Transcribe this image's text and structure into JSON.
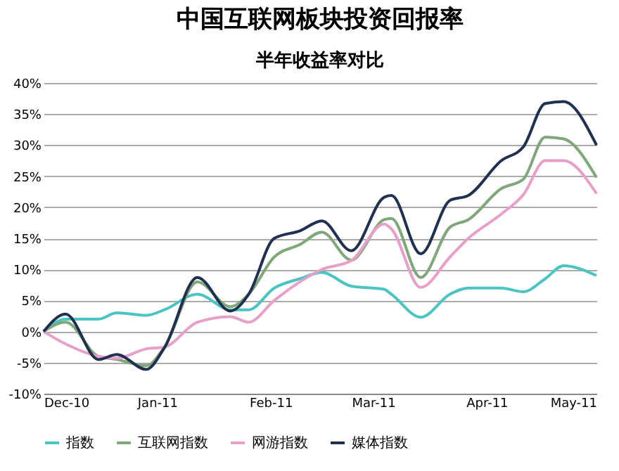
{
  "chart_data": {
    "type": "line",
    "title": "中国互联网板块投资回报率",
    "subtitle": "半年收益率对比",
    "x": [
      "2010-12-01",
      "2010-12-07",
      "2010-12-16",
      "2010-12-21",
      "2010-12-29",
      "2011-01-03",
      "2011-01-12",
      "2011-01-21",
      "2011-01-26",
      "2011-02-02",
      "2011-02-09",
      "2011-02-15",
      "2011-02-23",
      "2011-03-04",
      "2011-03-06",
      "2011-03-14",
      "2011-03-22",
      "2011-03-27",
      "2011-04-05",
      "2011-04-11",
      "2011-04-17",
      "2011-04-22",
      "2011-05-01"
    ],
    "series": [
      {
        "name": "指数",
        "color": "#4bc4c4",
        "values": [
          0,
          2,
          2,
          3,
          2.6,
          3.5,
          6,
          3.5,
          3.5,
          7,
          8.5,
          9.5,
          7.3,
          6.8,
          6,
          2.3,
          6,
          7,
          7,
          6.4,
          8.5,
          10.6,
          9
        ]
      },
      {
        "name": "互联网指数",
        "color": "#7fa779",
        "values": [
          0,
          1.5,
          -4,
          -4.5,
          -5.5,
          -2.5,
          8,
          4,
          6,
          12,
          14,
          16,
          11.5,
          18,
          18.2,
          8.7,
          16.8,
          18,
          23,
          24.5,
          31.3,
          31,
          24.8
        ]
      },
      {
        "name": "网游指数",
        "color": "#e8a0c8",
        "values": [
          0,
          -2,
          -4,
          -4.3,
          -2.8,
          -2.5,
          1.5,
          2.4,
          1.5,
          5,
          8,
          10,
          11.4,
          17.3,
          16.5,
          7.1,
          12,
          15,
          18.9,
          22,
          27.5,
          27.5,
          22.2
        ]
      },
      {
        "name": "媒体指数",
        "color": "#1f3050",
        "values": [
          0,
          2.8,
          -4.5,
          -3.7,
          -6.1,
          -2.6,
          8.7,
          3.3,
          6,
          15,
          16.2,
          17.8,
          13,
          21.6,
          21.9,
          12.5,
          21.1,
          21.9,
          27.5,
          29.7,
          36.7,
          37,
          30
        ]
      }
    ],
    "xlim": [
      "2010-12-01",
      "2011-05-01"
    ],
    "xticks": [
      {
        "value": "2010-12-01",
        "label": "Dec-10"
      },
      {
        "value": "2011-01-01",
        "label": "Jan-11"
      },
      {
        "value": "2011-02-01",
        "label": "Feb-11"
      },
      {
        "value": "2011-03-01",
        "label": "Mar-11"
      },
      {
        "value": "2011-04-01",
        "label": "Apr-11"
      },
      {
        "value": "2011-05-01",
        "label": "May-11"
      }
    ],
    "ylim": [
      -10,
      40
    ],
    "yticks": [
      {
        "value": -10,
        "label": "-10%"
      },
      {
        "value": -5,
        "label": "-5%"
      },
      {
        "value": 0,
        "label": "0%"
      },
      {
        "value": 5,
        "label": "5%"
      },
      {
        "value": 10,
        "label": "10%"
      },
      {
        "value": 15,
        "label": "15%"
      },
      {
        "value": 20,
        "label": "20%"
      },
      {
        "value": 25,
        "label": "25%"
      },
      {
        "value": 30,
        "label": "30%"
      },
      {
        "value": 35,
        "label": "35%"
      },
      {
        "value": 40,
        "label": "40%"
      }
    ],
    "grid": "y",
    "legend": "bottom",
    "marker": "none",
    "line_style": "solid"
  }
}
